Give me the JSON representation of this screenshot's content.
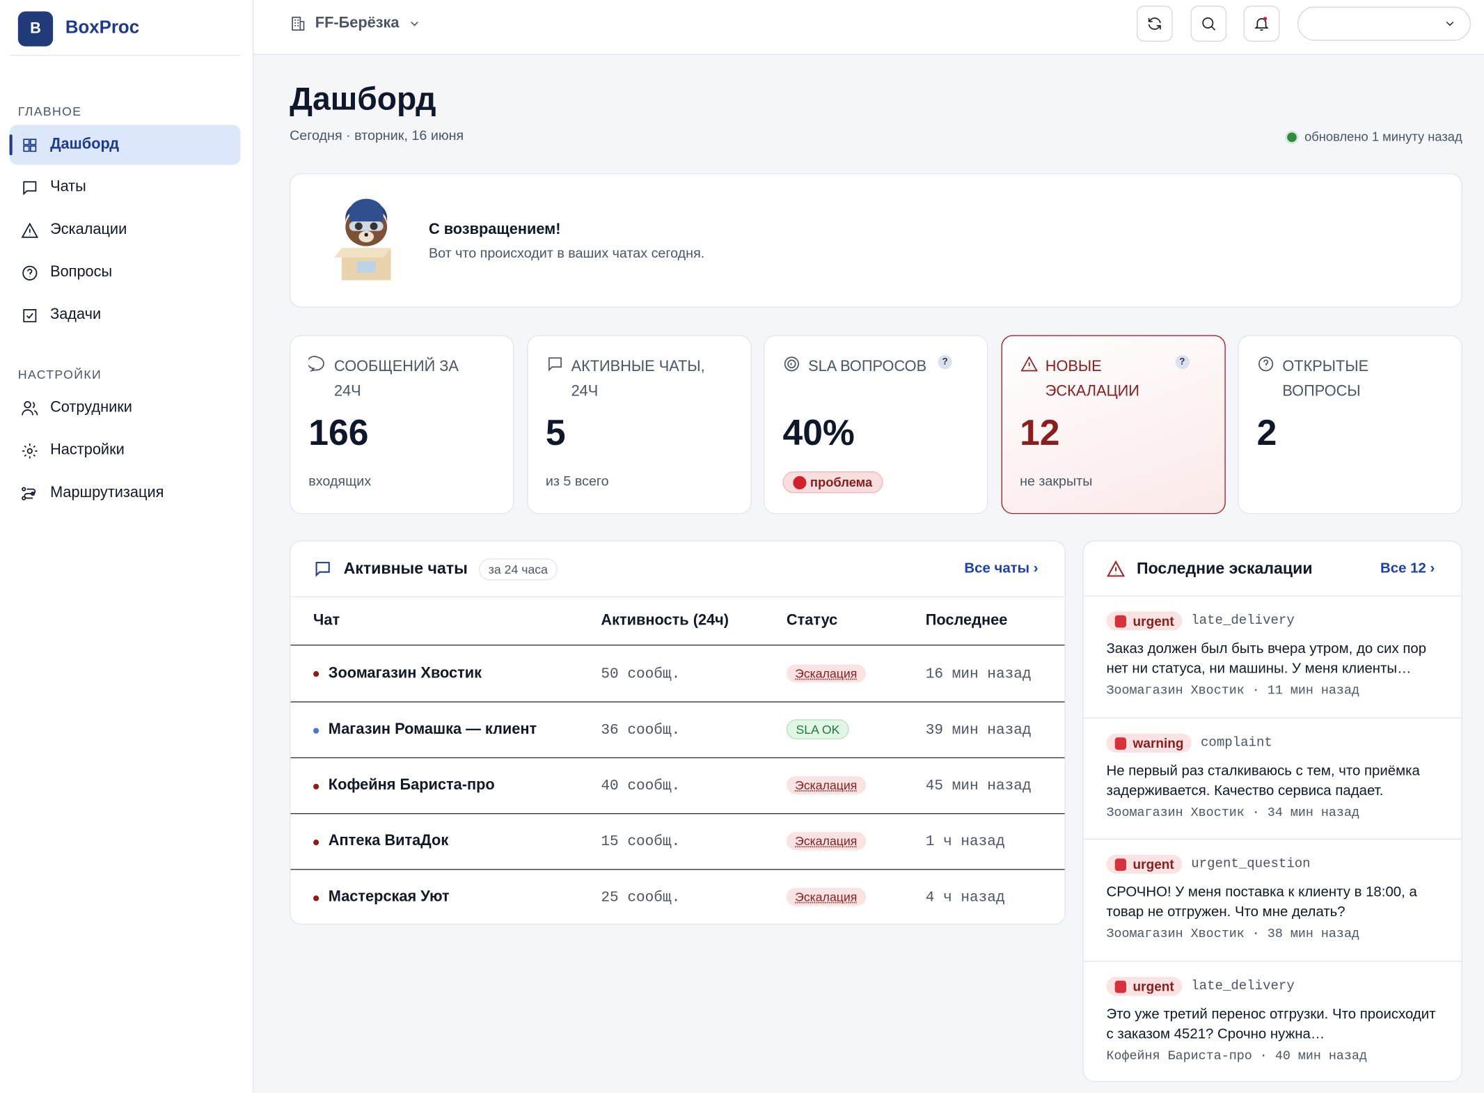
{
  "sidebar": {
    "logo_letter": "B",
    "brand": "BoxProc",
    "sections": [
      {
        "title": "ГЛАВНОЕ",
        "items": [
          "Дашборд",
          "Чаты",
          "Эскалации",
          "Вопросы",
          "Задачи"
        ]
      },
      {
        "title": "НАСТРОЙКИ",
        "items": [
          "Сотрудники",
          "Настройки",
          "Маршрутизация"
        ]
      }
    ]
  },
  "header": {
    "workspace": "FF-Берёзка"
  },
  "page": {
    "title": "Дашборд",
    "date": "Сегодня · вторник, 16 июня",
    "updated": "обновлено 1 минуту назад"
  },
  "welcome": {
    "title": "С возвращением!",
    "text": "Вот что происходит в ваших чатах сегодня."
  },
  "stats": [
    {
      "label": "СООБЩЕНИЙ ЗА 24Ч",
      "value": 166,
      "note": "входящих"
    },
    {
      "label": "АКТИВНЫЕ ЧАТЫ, 24Ч",
      "value": 5,
      "note": "из 5 всего"
    },
    {
      "label": "SLA ВОПРОСОВ",
      "help": "?",
      "value": "40%",
      "badge": "проблема"
    },
    {
      "label": "НОВЫЕ ЭСКАЛАЦИИ",
      "help": "?",
      "value": 12,
      "note": "не закрыты",
      "tone": "danger"
    },
    {
      "label": "ОТКРЫТЫЕ ВОПРОСЫ",
      "value": 2
    }
  ],
  "chats": {
    "title": "Активные чаты",
    "period": "за 24 часа",
    "link": "Все чаты",
    "columns": [
      "Чат",
      "Активность (24ч)",
      "Статус",
      "Последнее"
    ],
    "rows": [
      {
        "name": "Зоомагазин Хвостик",
        "activity": "50 сообщ.",
        "status": "Эскалация",
        "last": "16 мин назад",
        "tone": "danger"
      },
      {
        "name": "Магазин Ромашка — клиент",
        "activity": "36 сообщ.",
        "status": "SLA OK",
        "last": "39 мин назад",
        "tone": "ok"
      },
      {
        "name": "Кофейня Бариста-про",
        "activity": "40 сообщ.",
        "status": "Эскалация",
        "last": "45 мин назад",
        "tone": "danger"
      },
      {
        "name": "Аптека ВитаДок",
        "activity": "15 сообщ.",
        "status": "Эскалация",
        "last": "1 ч назад",
        "tone": "danger"
      },
      {
        "name": "Мастерская Уют",
        "activity": "25 сообщ.",
        "status": "Эскалация",
        "last": "4 ч назад",
        "tone": "danger"
      }
    ]
  },
  "escalations": {
    "title": "Последние эскалации",
    "link": "Все 12",
    "items": [
      {
        "level": "urgent",
        "type": "late_delivery",
        "text": "Заказ должен был быть вчера утром, до сих пор нет ни статуса, ни машины. У меня клиенты…",
        "meta": "Зоомагазин Хвостик · 11 мин назад"
      },
      {
        "level": "warning",
        "type": "complaint",
        "text": "Не первый раз сталкиваюсь с тем, что приёмка задерживается. Качество сервиса падает.",
        "meta": "Зоомагазин Хвостик · 34 мин назад"
      },
      {
        "level": "urgent",
        "type": "urgent_question",
        "text": "СРОЧНО! У меня поставка к клиенту в 18:00, а товар не отгружен. Что мне делать?",
        "meta": "Зоомагазин Хвостик · 38 мин назад"
      },
      {
        "level": "urgent",
        "type": "late_delivery",
        "text": "Это уже третий перенос отгрузки. Что происходит с заказом 4521? Срочно нужна…",
        "meta": "Кофейня Бариста-про · 40 мин назад"
      }
    ]
  }
}
